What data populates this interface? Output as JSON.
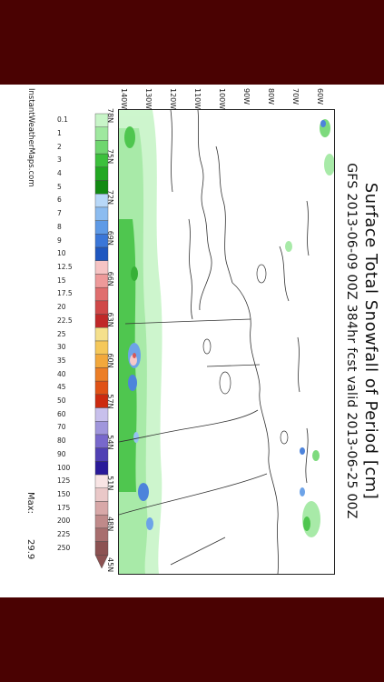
{
  "title": "Surface Total Snowfall of Period [cm]",
  "subtitle": "GFS 2013-06-09 00Z 384hr fcst valid 2013-06-25 00Z",
  "latitude_labels": [
    "45N",
    "48N",
    "51N",
    "54N",
    "57N",
    "60N",
    "63N",
    "66N",
    "69N",
    "72N",
    "75N",
    "78N"
  ],
  "longitude_labels": [
    "140W",
    "130W",
    "120W",
    "110W",
    "100W",
    "90W",
    "80W",
    "70W",
    "60W"
  ],
  "legend": {
    "labels": [
      "0.1",
      "1",
      "2",
      "3",
      "4",
      "5",
      "6",
      "7",
      "8",
      "9",
      "10",
      "12.5",
      "15",
      "17.5",
      "20",
      "22.5",
      "25",
      "30",
      "35",
      "40",
      "45",
      "50",
      "60",
      "70",
      "80",
      "90",
      "100",
      "125",
      "150",
      "175",
      "200",
      "225",
      "250"
    ],
    "colors": [
      "#c8f5c8",
      "#9fe89f",
      "#6fd66f",
      "#3cc03c",
      "#22a822",
      "#128a12",
      "#b8d8f8",
      "#8cbcf0",
      "#5e9ae6",
      "#3a76d8",
      "#1f57c0",
      "#f6c4c4",
      "#ee9a9a",
      "#e06e6e",
      "#d04848",
      "#c02828",
      "#f5e08c",
      "#f5c85a",
      "#f2a83c",
      "#ec7e26",
      "#e05216",
      "#cc2a10",
      "#c8c0ec",
      "#a096dc",
      "#7868cc",
      "#5040b4",
      "#2a1a9a",
      "#f8e4e4",
      "#eac8c8",
      "#d8a8a8",
      "#c08a8a",
      "#a86e6e",
      "#8c5252"
    ]
  },
  "source": "InstantWeatherMaps.com",
  "max_label": "Max:",
  "max_value": "29.9"
}
